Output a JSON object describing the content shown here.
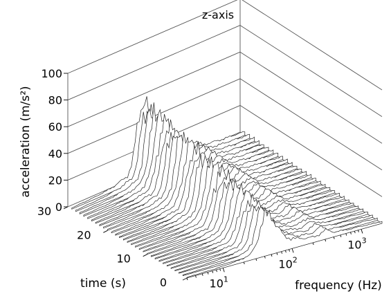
{
  "chart_data": {
    "type": "waterfall-3d",
    "title": "z-axis",
    "xlabel": "frequency (Hz)",
    "ylabel": "time (s)",
    "zlabel": "acceleration (m/s²)",
    "x_scale": "log",
    "x_range_hz": [
      3,
      2000
    ],
    "x_ticks": [
      {
        "base": "10",
        "exp": "1",
        "value": 10
      },
      {
        "base": "10",
        "exp": "2",
        "value": 100
      },
      {
        "base": "10",
        "exp": "3",
        "value": 1000
      }
    ],
    "y_range": [
      0,
      30
    ],
    "y_ticks": [
      "0",
      "10",
      "20",
      "30"
    ],
    "z_range": [
      0,
      100
    ],
    "z_ticks": [
      "0",
      "20",
      "40",
      "60",
      "80",
      "100"
    ],
    "trace_count": 30,
    "trace_times_s": [
      0,
      1,
      2,
      3,
      4,
      5,
      6,
      7,
      8,
      9,
      10,
      11,
      12,
      13,
      14,
      15,
      16,
      17,
      18,
      19,
      20,
      21,
      22,
      23,
      24,
      25,
      26,
      27,
      28,
      29
    ],
    "spectrum_profile": [
      {
        "freq_hz": 3,
        "accel": 1
      },
      {
        "freq_hz": 8,
        "accel": 2
      },
      {
        "freq_hz": 15,
        "accel": 4
      },
      {
        "freq_hz": 25,
        "accel": 8
      },
      {
        "freq_hz": 30,
        "accel": 20
      },
      {
        "freq_hz": 35,
        "accel": 45
      },
      {
        "freq_hz": 40,
        "accel": 62
      },
      {
        "freq_hz": 50,
        "accel": 58
      },
      {
        "freq_hz": 60,
        "accel": 40
      },
      {
        "freq_hz": 75,
        "accel": 22
      },
      {
        "freq_hz": 100,
        "accel": 15
      },
      {
        "freq_hz": 150,
        "accel": 10
      },
      {
        "freq_hz": 220,
        "accel": 8
      },
      {
        "freq_hz": 300,
        "accel": 14
      },
      {
        "freq_hz": 400,
        "accel": 7
      },
      {
        "freq_hz": 700,
        "accel": 5
      },
      {
        "freq_hz": 1200,
        "accel": 4
      },
      {
        "freq_hz": 2000,
        "accel": 3
      }
    ],
    "grid": true
  }
}
